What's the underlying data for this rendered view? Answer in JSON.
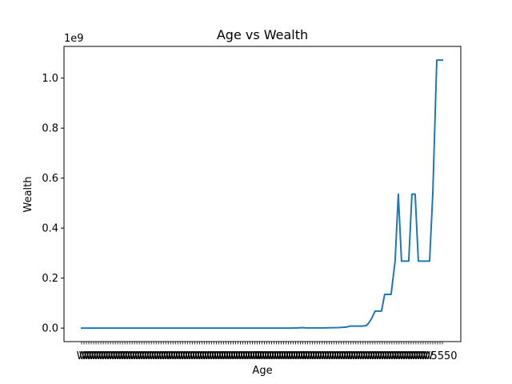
{
  "chart_data": {
    "type": "line",
    "title": "Age vs Wealth",
    "xlabel": "Age",
    "ylabel": "Wealth",
    "y_offset_label": "1e9",
    "y_ticks": [
      0.0,
      0.2,
      0.4,
      0.6,
      0.8,
      1.0
    ],
    "y_tick_labels": [
      "0.0",
      "0.2",
      "0.4",
      "0.6",
      "0.8",
      "1.0"
    ],
    "ylim": [
      -0.054,
      1.127
    ],
    "x_tick_label_overlap": "W",
    "x_tick_label_end": "5550",
    "series": [
      {
        "name": "Wealth",
        "color": "#1f77b4",
        "points": [
          [
            0,
            0.0
          ],
          [
            20,
            0.0
          ],
          [
            40,
            0.0
          ],
          [
            60,
            0.0
          ],
          [
            80,
            0.0
          ],
          [
            100,
            0.0
          ],
          [
            120,
            0.0
          ],
          [
            140,
            0.0
          ],
          [
            160,
            0.0
          ],
          [
            180,
            0.0
          ],
          [
            200,
            0.0
          ],
          [
            220,
            0.0
          ],
          [
            240,
            0.0
          ],
          [
            260,
            0.0
          ],
          [
            270,
            0.001
          ],
          [
            275,
            0.002
          ],
          [
            280,
            0.001
          ],
          [
            300,
            0.001
          ],
          [
            320,
            0.002
          ],
          [
            330,
            0.004
          ],
          [
            335,
            0.008
          ],
          [
            350,
            0.008
          ],
          [
            355,
            0.01
          ],
          [
            358,
            0.02
          ],
          [
            362,
            0.04
          ],
          [
            366,
            0.068
          ],
          [
            374,
            0.068
          ],
          [
            378,
            0.135
          ],
          [
            386,
            0.135
          ],
          [
            391,
            0.268
          ],
          [
            395,
            0.536
          ],
          [
            399,
            0.268
          ],
          [
            408,
            0.268
          ],
          [
            412,
            0.536
          ],
          [
            416,
            0.536
          ],
          [
            420,
            0.268
          ],
          [
            434,
            0.268
          ],
          [
            438,
            0.536
          ],
          [
            443,
            1.072
          ],
          [
            450,
            1.072
          ]
        ]
      }
    ]
  }
}
